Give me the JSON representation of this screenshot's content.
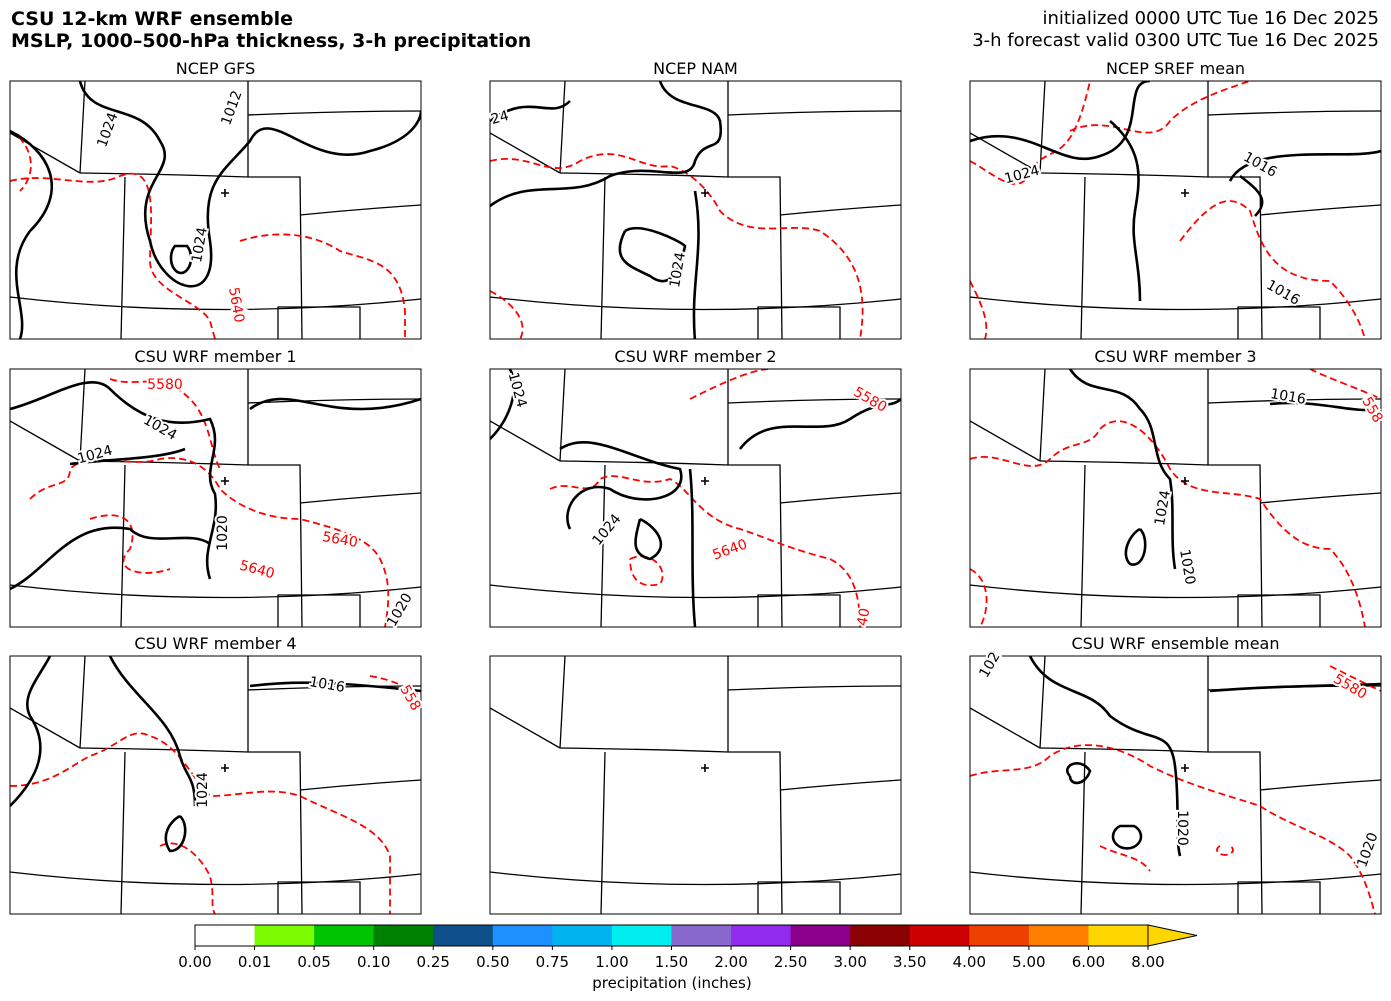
{
  "header": {
    "title_lines": [
      "CSU 12-km WRF ensemble",
      "MSLP, 1000–500-hPa thickness, 3-h precipitation"
    ],
    "info_lines": [
      "initialized 0000 UTC Tue 16 Dec 2025",
      "3-h forecast valid 0300 UTC Tue 16 Dec 2025"
    ]
  },
  "panels": [
    {
      "title": "NCEP GFS",
      "contour_labels": [
        {
          "text": 1024,
          "color": "black"
        },
        {
          "text": 1012,
          "color": "black"
        },
        {
          "text": 1024,
          "color": "black"
        },
        {
          "text": 5640,
          "color": "red"
        }
      ]
    },
    {
      "title": "NCEP NAM",
      "contour_labels": [
        {
          "text": 24,
          "color": "black"
        },
        {
          "text": 1024,
          "color": "black"
        }
      ]
    },
    {
      "title": "NCEP SREF mean",
      "contour_labels": [
        {
          "text": 1024,
          "color": "black"
        },
        {
          "text": 1016,
          "color": "black"
        },
        {
          "text": 1016,
          "color": "black"
        }
      ]
    },
    {
      "title": "CSU WRF member 1",
      "contour_labels": [
        {
          "text": 5580,
          "color": "red"
        },
        {
          "text": 1024,
          "color": "black"
        },
        {
          "text": 1024,
          "color": "black"
        },
        {
          "text": 1020,
          "color": "black"
        },
        {
          "text": 5640,
          "color": "red"
        },
        {
          "text": 5640,
          "color": "red"
        },
        {
          "text": 1020,
          "color": "black"
        }
      ]
    },
    {
      "title": "CSU WRF member 2",
      "contour_labels": [
        {
          "text": 1024,
          "color": "black"
        },
        {
          "text": 5580,
          "color": "red"
        },
        {
          "text": 1024,
          "color": "black"
        },
        {
          "text": 5640,
          "color": "red"
        },
        {
          "text": 40,
          "color": "red"
        }
      ]
    },
    {
      "title": "CSU WRF member 3",
      "contour_labels": [
        {
          "text": 1016,
          "color": "black"
        },
        {
          "text": 558,
          "color": "red"
        },
        {
          "text": 1024,
          "color": "black"
        },
        {
          "text": 1020,
          "color": "black"
        }
      ]
    },
    {
      "title": "CSU WRF member 4",
      "contour_labels": [
        {
          "text": 1016,
          "color": "black"
        },
        {
          "text": 558,
          "color": "red"
        },
        {
          "text": 1024,
          "color": "black"
        }
      ]
    },
    {
      "contour_labels": []
    },
    {
      "title": "CSU WRF ensemble mean",
      "contour_labels": [
        {
          "text": 102,
          "color": "black"
        },
        {
          "text": 5580,
          "color": "red"
        },
        {
          "text": 1020,
          "color": "black"
        },
        {
          "text": 1020,
          "color": "black"
        }
      ]
    }
  ],
  "colorbar": {
    "label": "precipitation (inches)",
    "ticks": [
      {
        "value": 0,
        "label": "0.00"
      },
      {
        "value": 0.01,
        "label": "0.01"
      },
      {
        "value": 0.05,
        "label": "0.05"
      },
      {
        "value": 0.1,
        "label": "0.10"
      },
      {
        "value": 0.25,
        "label": "0.25"
      },
      {
        "value": 0.5,
        "label": "0.50"
      },
      {
        "value": 0.75,
        "label": "0.75"
      },
      {
        "value": 1,
        "label": "1.00"
      },
      {
        "value": 1.5,
        "label": "1.50"
      },
      {
        "value": 2,
        "label": "2.00"
      },
      {
        "value": 2.5,
        "label": "2.50"
      },
      {
        "value": 3,
        "label": "3.00"
      },
      {
        "value": 3.5,
        "label": "3.50"
      },
      {
        "value": 4,
        "label": "4.00"
      },
      {
        "value": 5,
        "label": "5.00"
      },
      {
        "value": 6,
        "label": "6.00"
      },
      {
        "value": 8,
        "label": "8.00"
      }
    ],
    "colors": [
      "#ffffff",
      "#7cfc00",
      "#00c400",
      "#008000",
      "#10508a",
      "#1e90ff",
      "#00b2ee",
      "#00eeee",
      "#8968cd",
      "#912cee",
      "#8b008b",
      "#8b0000",
      "#cd0000",
      "#ee4000",
      "#ff7f00",
      "#ffd700"
    ]
  }
}
